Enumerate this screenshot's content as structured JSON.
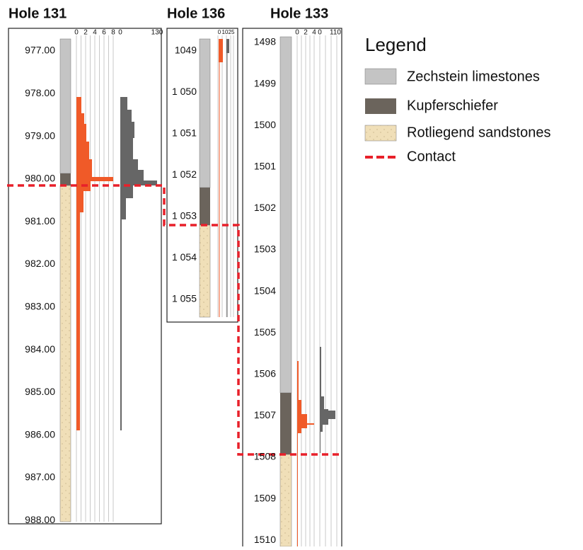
{
  "holes": [
    {
      "title": "Hole 131",
      "depths": [
        "977.00",
        "978.00",
        "979.00",
        "980.00",
        "981.00",
        "982.00",
        "983.00",
        "984.00",
        "985.00",
        "986.00",
        "987.00",
        "988.00"
      ],
      "scale_a": [
        "0",
        "2",
        "4",
        "6",
        "8"
      ],
      "scale_b": [
        "0",
        "130"
      ]
    },
    {
      "title": "Hole 136",
      "depths": [
        "1049",
        "1 050",
        "1 051",
        "1 052",
        "1 053",
        "1 054",
        "1 055"
      ],
      "scale_a": [
        "0",
        "10",
        "25"
      ]
    },
    {
      "title": "Hole 133",
      "depths": [
        "1498",
        "1499",
        "1500",
        "1501",
        "1502",
        "1503",
        "1504",
        "1505",
        "1506",
        "1507",
        "1508",
        "1509",
        "1510"
      ],
      "scale_a": [
        "0",
        "2",
        "4"
      ],
      "scale_b": [
        "0",
        "110"
      ]
    }
  ],
  "legend": {
    "title": "Legend",
    "items": [
      "Zechstein limestones",
      "Kupferschiefer",
      "Rotliegend sandstones",
      "Contact"
    ]
  }
}
